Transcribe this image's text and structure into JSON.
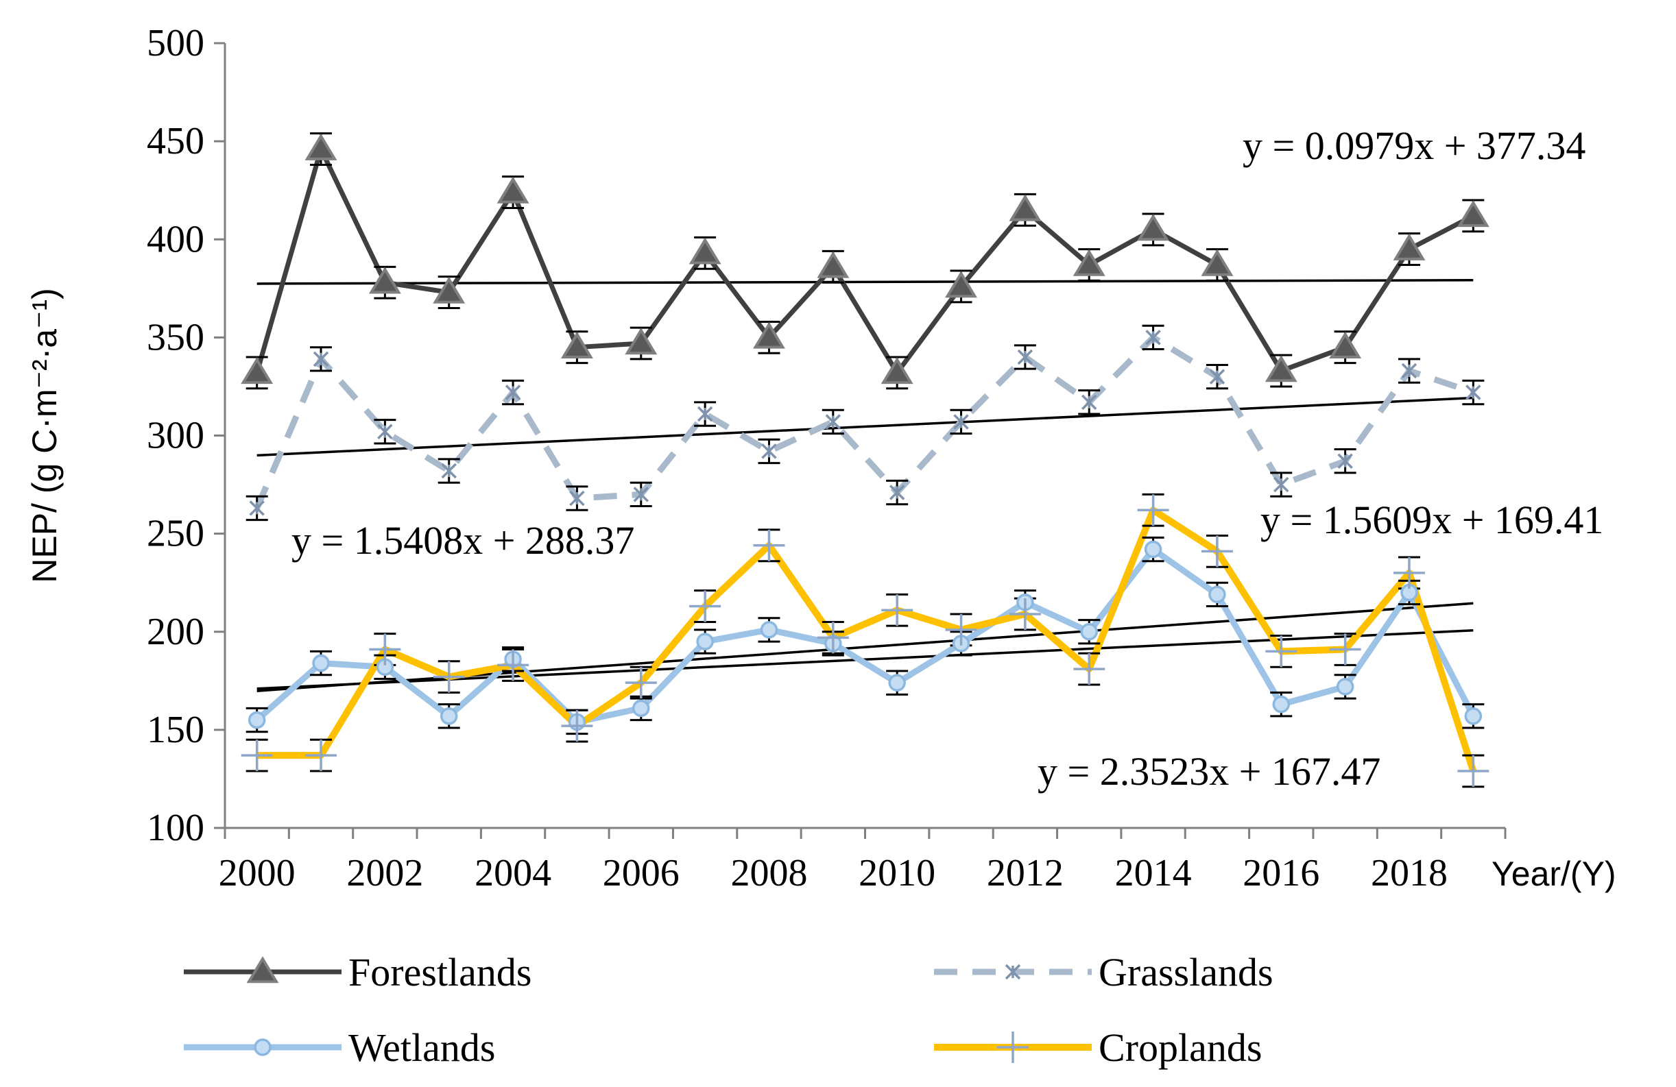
{
  "chart_data": {
    "type": "line",
    "ylabel": "NEP/ (g C·m⁻²·a⁻¹)",
    "xlabel": "Year/(Y)",
    "ylim": [
      100,
      500
    ],
    "yticks": [
      100,
      150,
      200,
      250,
      300,
      350,
      400,
      450,
      500
    ],
    "x": [
      2000,
      2001,
      2002,
      2003,
      2004,
      2005,
      2006,
      2007,
      2008,
      2009,
      2010,
      2011,
      2012,
      2013,
      2014,
      2015,
      2016,
      2017,
      2018,
      2019
    ],
    "xtick_labels": [
      "2000",
      "2002",
      "2004",
      "2006",
      "2008",
      "2010",
      "2012",
      "2014",
      "2016",
      "2018"
    ],
    "series": [
      {
        "name": "Forestlands",
        "color": "#404040",
        "marker": "triangle",
        "dash": "solid",
        "values": [
          332,
          446,
          378,
          373,
          424,
          345,
          347,
          393,
          350,
          386,
          332,
          376,
          415,
          387,
          405,
          387,
          333,
          345,
          395,
          412
        ],
        "error": [
          8,
          8,
          8,
          8,
          8,
          8,
          8,
          8,
          8,
          8,
          8,
          8,
          8,
          8,
          8,
          8,
          8,
          8,
          8,
          8
        ],
        "trend": {
          "label": "y = 0.0979x + 377.34",
          "start": 377.4,
          "end": 379.2
        }
      },
      {
        "name": "Grasslands",
        "color": "#a9b9cc",
        "marker": "asterisk",
        "dash": "dashed",
        "values": [
          263,
          339,
          302,
          282,
          322,
          268,
          270,
          311,
          292,
          307,
          271,
          307,
          340,
          317,
          350,
          330,
          275,
          287,
          333,
          322
        ],
        "error": [
          6,
          6,
          6,
          6,
          6,
          6,
          6,
          6,
          6,
          6,
          6,
          6,
          6,
          6,
          6,
          6,
          6,
          6,
          6,
          6
        ],
        "trend": {
          "label": "y = 1.5408x + 288.37",
          "start": 289.9,
          "end": 319.2
        }
      },
      {
        "name": "Wetlands",
        "color": "#9dc3e6",
        "marker": "circle",
        "dash": "solid",
        "values": [
          155,
          184,
          182,
          157,
          186,
          154,
          161,
          195,
          201,
          194,
          174,
          194,
          215,
          200,
          242,
          219,
          163,
          172,
          220,
          157
        ],
        "error": [
          6,
          6,
          6,
          6,
          6,
          6,
          6,
          6,
          6,
          6,
          6,
          6,
          6,
          6,
          6,
          6,
          6,
          6,
          6,
          6
        ],
        "trend": {
          "label": "y = 1.5609x + 169.41",
          "start": 171.0,
          "end": 200.7
        }
      },
      {
        "name": "Croplands",
        "color": "#ffc000",
        "marker": "plus",
        "dash": "solid",
        "values": [
          137,
          137,
          191,
          177,
          183,
          152,
          174,
          213,
          244,
          197,
          211,
          201,
          209,
          181,
          262,
          241,
          190,
          191,
          230,
          129
        ],
        "error": [
          8,
          8,
          8,
          8,
          8,
          8,
          8,
          8,
          8,
          8,
          8,
          8,
          8,
          8,
          8,
          8,
          8,
          8,
          8,
          8
        ],
        "trend": {
          "label": "y = 2.3523x + 167.47",
          "start": 169.8,
          "end": 214.5
        }
      }
    ]
  }
}
